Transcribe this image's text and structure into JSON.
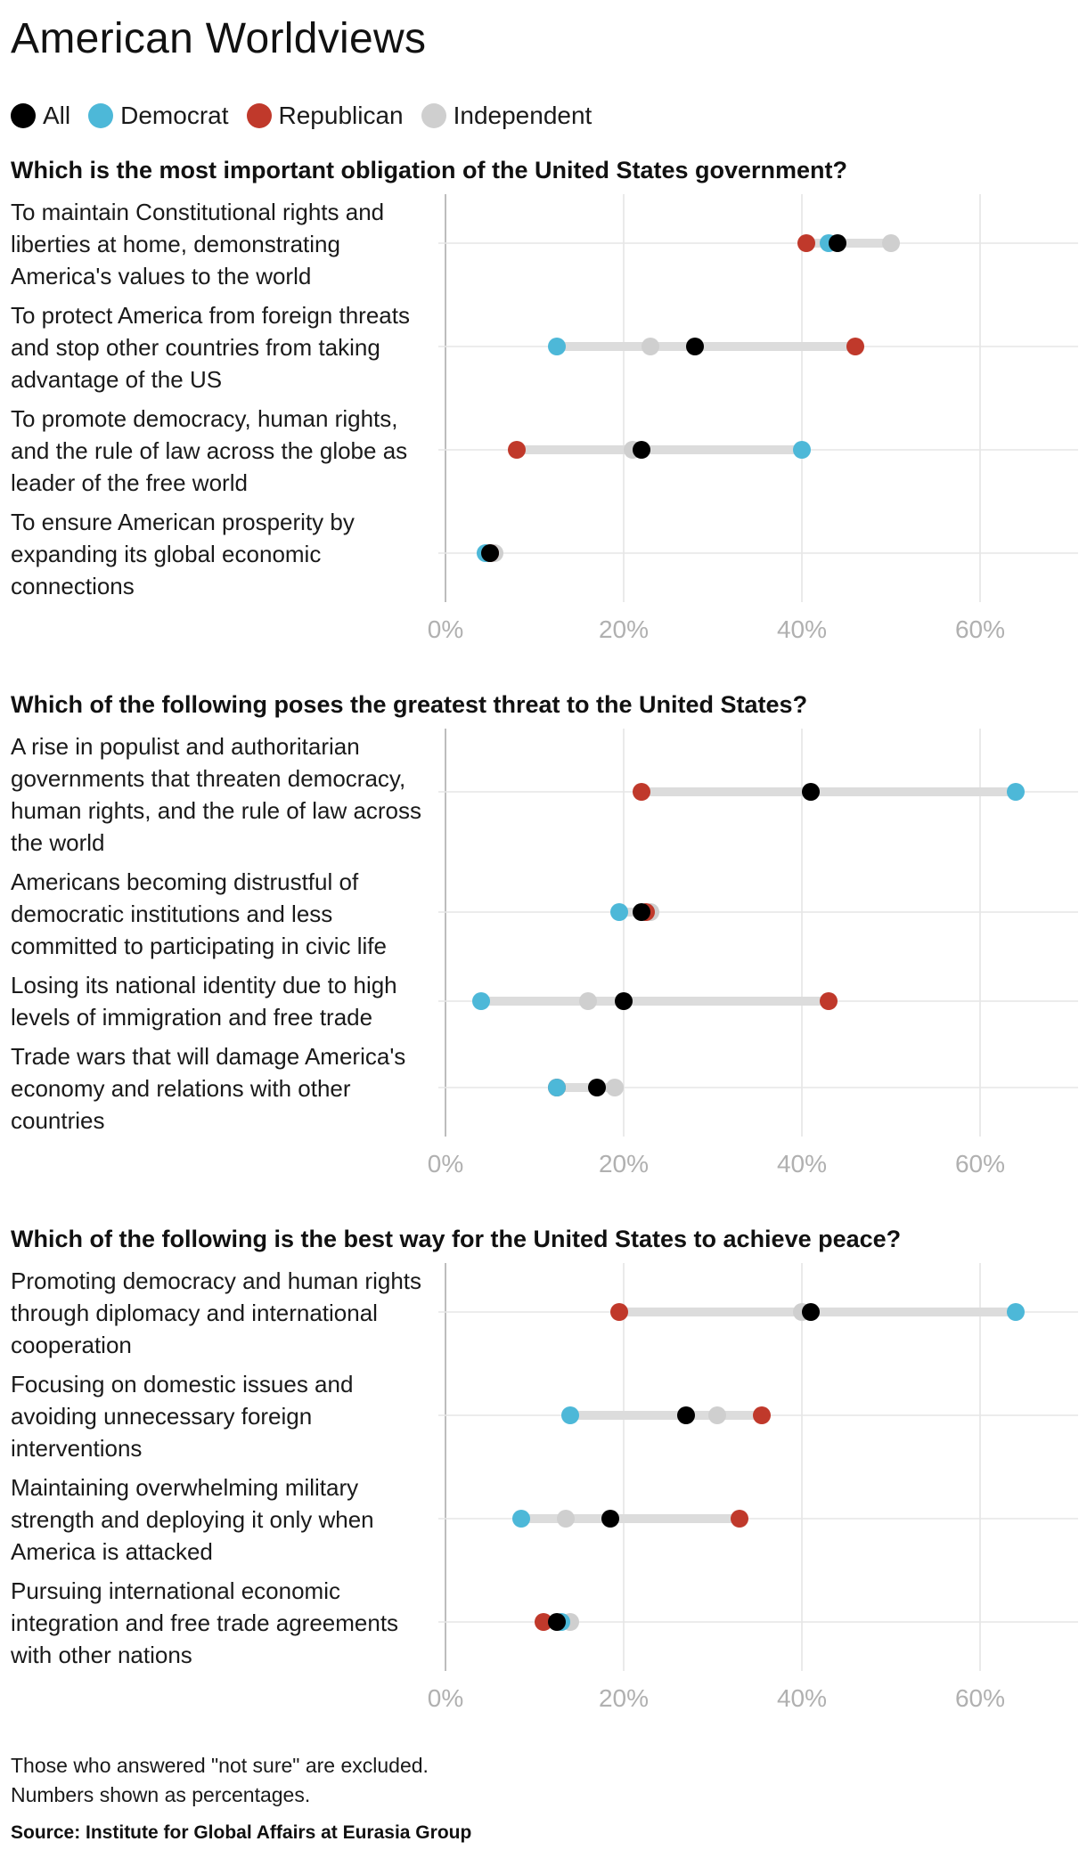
{
  "title": "American Worldviews",
  "legend": [
    {
      "label": "All",
      "color": "#000000"
    },
    {
      "label": "Democrat",
      "color": "#4db8d8"
    },
    {
      "label": "Republican",
      "color": "#c0392b"
    },
    {
      "label": "Independent",
      "color": "#cfcfcf"
    }
  ],
  "axis": {
    "ticks": [
      "0%",
      "20%",
      "40%",
      "60%"
    ],
    "tick_values": [
      0,
      20,
      40,
      60
    ],
    "xlim": [
      0,
      71
    ]
  },
  "chart_data": [
    {
      "type": "dot-range",
      "question": "Which is the most important obligation of the United States government?",
      "categories": [
        "To maintain Constitutional rights and liberties at home, demonstrating America's values to the world",
        "To protect America from foreign threats and stop other countries from taking advantage of the US",
        "To promote democracy, human rights, and the rule of law across the globe as leader of the free world",
        "To ensure American prosperity by expanding its global economic connections"
      ],
      "label_lines": [
        [
          "To maintain Constitutional rights and",
          "liberties at home, demonstrating",
          "America's values to the world"
        ],
        [
          "To protect America from foreign threats",
          "and stop other countries from taking",
          "advantage of the US"
        ],
        [
          "To promote democracy, human rights,",
          "and the rule of law across the globe as",
          "leader of the free world"
        ],
        [
          "To ensure American prosperity by",
          "expanding its global economic",
          "connections"
        ]
      ],
      "series": [
        {
          "name": "All",
          "values": [
            44,
            28,
            22,
            5
          ]
        },
        {
          "name": "Democrat",
          "values": [
            43,
            12.5,
            40,
            4.5
          ]
        },
        {
          "name": "Republican",
          "values": [
            40.5,
            46,
            8,
            5
          ]
        },
        {
          "name": "Independent",
          "values": [
            50,
            23,
            21,
            5.5
          ]
        }
      ],
      "xlim": [
        0,
        71
      ],
      "xticks": [
        "0%",
        "20%",
        "40%",
        "60%"
      ]
    },
    {
      "type": "dot-range",
      "question": "Which of the following poses the greatest threat to the United States?",
      "categories": [
        "A rise in populist and authoritarian governments that threaten democracy, human rights, and the rule of law across the world",
        "Americans becoming distrustful of democratic institutions and less committed to participating in civic life",
        "Losing its national identity due to high levels of immigration and free trade",
        "Trade wars that will damage America's economy and relations with other countries"
      ],
      "label_lines": [
        [
          "A rise in populist and authoritarian",
          "governments that threaten democracy,",
          "human rights, and the rule of law across",
          "the world"
        ],
        [
          "Americans becoming distrustful of",
          "democratic institutions and less",
          "committed to participating in civic life"
        ],
        [
          "Losing its national identity due to high",
          "levels of immigration and free trade"
        ],
        [
          "Trade wars that will damage America's",
          "economy and relations with other",
          "countries"
        ]
      ],
      "series": [
        {
          "name": "All",
          "values": [
            41,
            22,
            20,
            17
          ]
        },
        {
          "name": "Democrat",
          "values": [
            64,
            19.5,
            4,
            12.5
          ]
        },
        {
          "name": "Republican",
          "values": [
            22,
            22.5,
            43,
            12.5
          ]
        },
        {
          "name": "Independent",
          "values": [
            41,
            23,
            16,
            19
          ]
        }
      ],
      "xlim": [
        0,
        71
      ],
      "xticks": [
        "0%",
        "20%",
        "40%",
        "60%"
      ]
    },
    {
      "type": "dot-range",
      "question": "Which of the following is the best way for the United States to achieve peace?",
      "categories": [
        "Promoting democracy and human rights through diplomacy and international cooperation",
        "Focusing on domestic issues and avoiding unnecessary foreign interventions",
        "Maintaining overwhelming military strength and deploying it only when America is attacked",
        "Pursuing international economic integration and free trade agreements with other nations"
      ],
      "label_lines": [
        [
          "Promoting democracy and human rights",
          "through diplomacy and international",
          "cooperation"
        ],
        [
          "Focusing on domestic issues and",
          "avoiding unnecessary foreign",
          "interventions"
        ],
        [
          "Maintaining overwhelming military",
          "strength and deploying it only when",
          "America is attacked"
        ],
        [
          "Pursuing international economic",
          "integration and free trade agreements",
          "with other nations"
        ]
      ],
      "series": [
        {
          "name": "All",
          "values": [
            41,
            27,
            18.5,
            12.5
          ]
        },
        {
          "name": "Democrat",
          "values": [
            64,
            14,
            8.5,
            13
          ]
        },
        {
          "name": "Republican",
          "values": [
            19.5,
            35.5,
            33,
            11
          ]
        },
        {
          "name": "Independent",
          "values": [
            40,
            30.5,
            13.5,
            14
          ]
        }
      ],
      "xlim": [
        0,
        71
      ],
      "xticks": [
        "0%",
        "20%",
        "40%",
        "60%"
      ]
    }
  ],
  "footnote": {
    "line1": "Those who answered \"not sure\" are excluded.",
    "line2": "Numbers shown as percentages."
  },
  "source": "Source: Institute for Global Affairs at Eurasia Group"
}
